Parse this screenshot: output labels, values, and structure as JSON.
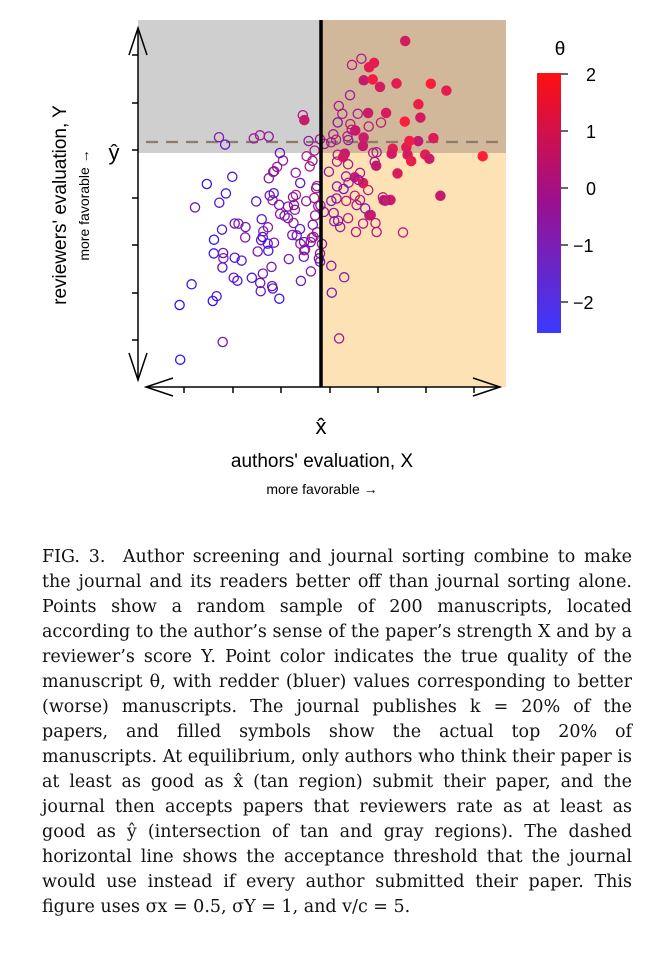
{
  "figure": {
    "x_axis_label": "authors' evaluation, X",
    "x_axis_sublabel": "more favorable →",
    "y_axis_label": "reviewers' evaluation, Y",
    "y_axis_sublabel": "more favorable →",
    "x_threshold_label": "x̂",
    "y_threshold_label": "ŷ",
    "colorbar_title": "θ",
    "colorbar_ticks": [
      "2",
      "1",
      "0",
      "−1",
      "−2"
    ],
    "colors": {
      "gray_region": "#cfcfcf",
      "tan_region": "#fde2b6",
      "overlap_region": "#d2b89a",
      "dashed_line": "#8c7b6b",
      "high_quality": "#ff0000",
      "low_quality": "#3333ff"
    }
  },
  "caption": {
    "label": "FIG. 3.",
    "text": "Author screening and journal sorting combine to make the journal and its readers better off than journal sorting alone. Points show a random sample of 200 manuscripts, located according to the author’s sense of the paper’s strength X and by a reviewer’s score Y. Point color indicates the true quality of the manuscript θ, with redder (bluer) values corresponding to better (worse) manuscripts. The journal publishes k = 20% of the papers, and filled symbols show the actual top 20% of manuscripts. At equilibrium, only authors who think their paper is at least as good as x̂ (tan region) submit their paper, and the journal then accepts papers that reviewers rate as at least as good as ŷ (intersection of tan and gray regions). The dashed horizontal line shows the acceptance threshold that the journal would use instead if every author submitted their paper. This figure uses σx = 0.5, σY = 1, and v/c = 5."
  },
  "chart_data": {
    "type": "scatter",
    "xlabel": "authors' evaluation, X",
    "ylabel": "reviewers' evaluation, Y",
    "x_threshold": "x̂",
    "y_threshold": "ŷ",
    "color_variable": "θ",
    "color_range": [
      -2.5,
      2.2
    ],
    "legend": "right (colorbar)",
    "note": "filled symbols = actual top 20% of manuscripts"
  }
}
